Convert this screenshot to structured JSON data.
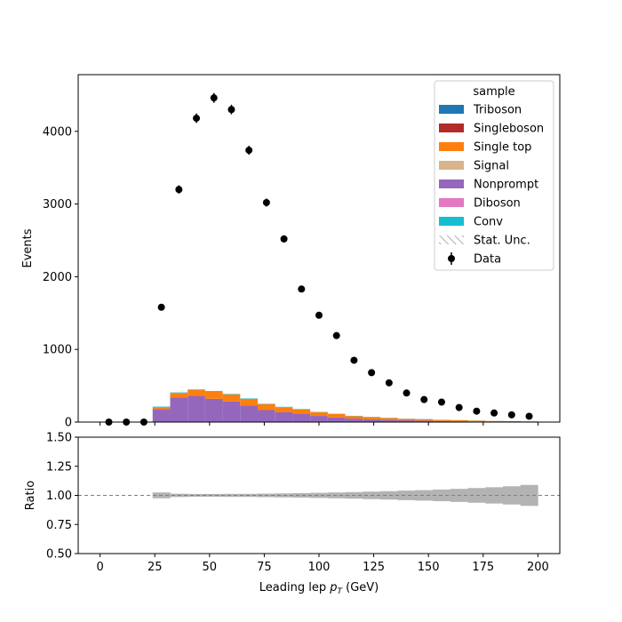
{
  "chart_data": [
    {
      "type": "bar",
      "panel": "main",
      "stacked": true,
      "xlabel_text": "Leading lep ",
      "xlabel_sym": "p",
      "xlabel_sub": "T",
      "xlabel_unit": " (GeV)",
      "ylabel": "Events",
      "xlim": [
        -10,
        210
      ],
      "ylim": [
        0,
        4780
      ],
      "xticks": [
        0,
        25,
        50,
        75,
        100,
        125,
        150,
        175,
        200
      ],
      "yticks": [
        0,
        1000,
        2000,
        3000,
        4000
      ],
      "bin_edges": [
        0,
        8,
        16,
        24,
        32,
        40,
        48,
        56,
        64,
        72,
        80,
        88,
        96,
        104,
        112,
        120,
        128,
        136,
        144,
        152,
        160,
        168,
        176,
        184,
        192,
        200
      ],
      "series": [
        {
          "name": "Nonprompt",
          "color": "#9467bd",
          "values": [
            0,
            0,
            0,
            180,
            340,
            360,
            320,
            285,
            230,
            165,
            135,
            115,
            85,
            65,
            48,
            38,
            30,
            24,
            20,
            15,
            11,
            9,
            7,
            5,
            4
          ]
        },
        {
          "name": "Single top",
          "color": "#ff7f0e",
          "values": [
            0,
            0,
            0,
            25,
            60,
            80,
            100,
            95,
            90,
            80,
            70,
            60,
            50,
            45,
            35,
            30,
            25,
            20,
            20,
            15,
            14,
            10,
            8,
            7,
            5
          ]
        },
        {
          "name": "Conv",
          "color": "#17becf",
          "values": [
            0,
            0,
            0,
            8,
            8,
            8,
            8,
            7,
            6,
            6,
            5,
            5,
            4,
            4,
            3,
            3,
            3,
            2,
            2,
            2,
            2,
            2,
            1,
            1,
            1
          ]
        }
      ],
      "data_points": {
        "name": "Data",
        "x": [
          4,
          12,
          20,
          28,
          36,
          44,
          52,
          60,
          68,
          76,
          84,
          92,
          100,
          108,
          116,
          124,
          132,
          140,
          148,
          156,
          164,
          172,
          180,
          188,
          196
        ],
        "y": [
          0,
          0,
          0,
          1580,
          3200,
          4180,
          4460,
          4300,
          3740,
          3020,
          2520,
          1830,
          1470,
          1190,
          850,
          680,
          540,
          400,
          310,
          275,
          200,
          150,
          125,
          100,
          80
        ],
        "yerr": [
          0,
          0,
          0,
          40,
          57,
          65,
          67,
          66,
          61,
          55,
          50,
          43,
          38,
          34,
          29,
          26,
          23,
          20,
          18,
          17,
          14,
          12,
          11,
          10,
          9
        ]
      },
      "legend": {
        "title": "sample",
        "placement": "top-right",
        "entries": [
          {
            "label": "Triboson",
            "kind": "patch",
            "color": "#1f77b4"
          },
          {
            "label": "Singleboson",
            "kind": "patch",
            "color": "#b22a2a"
          },
          {
            "label": "Single top",
            "kind": "patch",
            "color": "#ff7f0e"
          },
          {
            "label": "Signal",
            "kind": "patch",
            "color": "#d8b48a"
          },
          {
            "label": "Nonprompt",
            "kind": "patch",
            "color": "#9467bd"
          },
          {
            "label": "Diboson",
            "kind": "patch",
            "color": "#e377c2"
          },
          {
            "label": "Conv",
            "kind": "patch",
            "color": "#17becf"
          },
          {
            "label": "Stat. Unc.",
            "kind": "hatch",
            "color": "#999999"
          },
          {
            "label": "Data",
            "kind": "errorbar",
            "color": "#000000"
          }
        ]
      }
    },
    {
      "type": "area",
      "panel": "ratio",
      "ylabel": "Ratio",
      "ylim": [
        0.5,
        1.5
      ],
      "yticks": [
        0.5,
        0.75,
        1.0,
        1.25,
        1.5
      ],
      "ytick_labels": [
        "0.50",
        "0.75",
        "1.00",
        "1.25",
        "1.50"
      ],
      "reference_line": 1.0,
      "bin_edges": [
        24,
        32,
        40,
        48,
        56,
        64,
        72,
        80,
        88,
        96,
        104,
        112,
        120,
        128,
        136,
        144,
        152,
        160,
        168,
        176,
        184,
        192,
        200
      ],
      "uncertainty_halfwidth": [
        0.025,
        0.014,
        0.012,
        0.012,
        0.013,
        0.013,
        0.015,
        0.017,
        0.019,
        0.022,
        0.025,
        0.028,
        0.032,
        0.036,
        0.041,
        0.045,
        0.05,
        0.056,
        0.063,
        0.07,
        0.078,
        0.09,
        0.13
      ],
      "band_color": "#b3b3b3"
    }
  ]
}
